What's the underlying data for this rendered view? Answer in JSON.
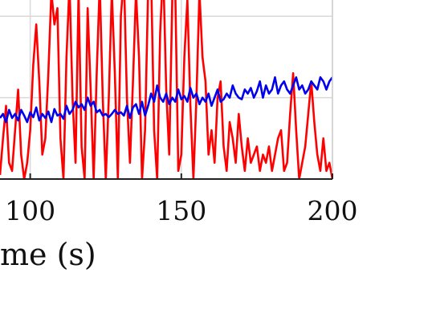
{
  "chart_data": {
    "type": "line",
    "xlabel": "me (s)",
    "x_ticks": [
      "100",
      "150",
      "200"
    ],
    "xlim": [
      90,
      200
    ],
    "ylim": [
      0,
      2.2
    ],
    "grid": true,
    "colors": {
      "red_series": "#ff0000",
      "blue_series": "#0000ee"
    },
    "series": [
      {
        "color": "#ff0000",
        "x": [
          90,
          91,
          92,
          93,
          94,
          95,
          96,
          97,
          98,
          99,
          100,
          101,
          102,
          103,
          104,
          105,
          106,
          107,
          108,
          109,
          110,
          111,
          112,
          113,
          114,
          115,
          116,
          117,
          118,
          119,
          120,
          121,
          122,
          123,
          124,
          125,
          126,
          127,
          128,
          129,
          130,
          131,
          132,
          133,
          134,
          135,
          136,
          137,
          138,
          139,
          140,
          141,
          142,
          143,
          144,
          145,
          146,
          147,
          148,
          149,
          150,
          151,
          152,
          153,
          154,
          155,
          156,
          157,
          158,
          159,
          160,
          161,
          162,
          163,
          164,
          165,
          166,
          167,
          168,
          169,
          170,
          171,
          172,
          173,
          174,
          175,
          176,
          177,
          178,
          179,
          180,
          181,
          182,
          183,
          184,
          185,
          186,
          187,
          188,
          189,
          190,
          191,
          192,
          193,
          194,
          195,
          196,
          197,
          198,
          199,
          200
        ],
        "y": [
          0.05,
          0.5,
          0.9,
          0.2,
          0.1,
          0.6,
          1.1,
          0.3,
          0.0,
          0.2,
          0.6,
          1.4,
          1.9,
          1.2,
          0.3,
          0.5,
          1.3,
          2.3,
          1.9,
          2.1,
          0.5,
          0.0,
          1.5,
          2.4,
          1.0,
          0.2,
          2.3,
          0.4,
          0.0,
          2.1,
          1.1,
          0.0,
          1.3,
          2.4,
          1.0,
          0.0,
          1.0,
          2.3,
          1.3,
          0.0,
          2.0,
          2.5,
          1.0,
          0.2,
          1.2,
          2.3,
          1.5,
          0.0,
          0.6,
          2.3,
          2.5,
          0.6,
          0.0,
          1.8,
          2.6,
          1.1,
          0.3,
          2.2,
          2.3,
          0.1,
          0.3,
          1.5,
          2.2,
          0.9,
          0.0,
          1.0,
          2.3,
          1.5,
          1.2,
          0.3,
          0.6,
          0.2,
          1.0,
          1.2,
          0.4,
          0.1,
          0.7,
          0.5,
          0.2,
          0.8,
          0.4,
          0.1,
          0.5,
          0.2,
          0.3,
          0.4,
          0.1,
          0.3,
          0.2,
          0.4,
          0.1,
          0.3,
          0.5,
          0.6,
          0.1,
          0.2,
          0.8,
          1.3,
          0.6,
          0.0,
          0.2,
          0.4,
          0.8,
          1.2,
          0.7,
          0.3,
          0.1,
          0.5,
          0.1,
          0.2,
          0.0
        ]
      },
      {
        "color": "#0000ee",
        "x": [
          90,
          91,
          92,
          93,
          94,
          95,
          96,
          97,
          98,
          99,
          100,
          101,
          102,
          103,
          104,
          105,
          106,
          107,
          108,
          109,
          110,
          111,
          112,
          113,
          114,
          115,
          116,
          117,
          118,
          119,
          120,
          121,
          122,
          123,
          124,
          125,
          126,
          127,
          128,
          129,
          130,
          131,
          132,
          133,
          134,
          135,
          136,
          137,
          138,
          139,
          140,
          141,
          142,
          143,
          144,
          145,
          146,
          147,
          148,
          149,
          150,
          151,
          152,
          153,
          154,
          155,
          156,
          157,
          158,
          159,
          160,
          161,
          162,
          163,
          164,
          165,
          166,
          167,
          168,
          169,
          170,
          171,
          172,
          173,
          174,
          175,
          176,
          177,
          178,
          179,
          180,
          181,
          182,
          183,
          184,
          185,
          186,
          187,
          188,
          189,
          190,
          191,
          192,
          193,
          194,
          195,
          196,
          197,
          198,
          199,
          200
        ],
        "y": [
          0.75,
          0.8,
          0.7,
          0.85,
          0.75,
          0.8,
          0.72,
          0.85,
          0.78,
          0.7,
          0.82,
          0.76,
          0.88,
          0.72,
          0.8,
          0.75,
          0.83,
          0.7,
          0.86,
          0.78,
          0.8,
          0.74,
          0.9,
          0.8,
          0.85,
          0.95,
          0.88,
          0.92,
          0.85,
          1.0,
          0.9,
          0.95,
          0.82,
          0.85,
          0.78,
          0.8,
          0.76,
          0.8,
          0.85,
          0.8,
          0.82,
          0.78,
          0.9,
          0.75,
          0.88,
          0.92,
          0.8,
          0.95,
          0.78,
          0.9,
          1.05,
          0.95,
          1.15,
          1.0,
          0.95,
          1.05,
          0.92,
          1.0,
          0.95,
          1.1,
          0.98,
          1.02,
          0.95,
          1.12,
          1.0,
          1.05,
          0.92,
          1.0,
          0.95,
          1.05,
          0.9,
          1.0,
          1.1,
          0.95,
          0.98,
          1.05,
          1.0,
          1.15,
          1.05,
          1.0,
          0.98,
          1.1,
          1.05,
          1.12,
          1.0,
          1.08,
          1.2,
          1.0,
          1.15,
          1.05,
          1.1,
          1.25,
          1.05,
          1.15,
          1.2,
          1.1,
          1.05,
          1.15,
          1.25,
          1.1,
          1.15,
          1.05,
          1.1,
          1.2,
          1.15,
          1.1,
          1.25,
          1.2,
          1.1,
          1.2,
          1.25
        ]
      }
    ]
  }
}
